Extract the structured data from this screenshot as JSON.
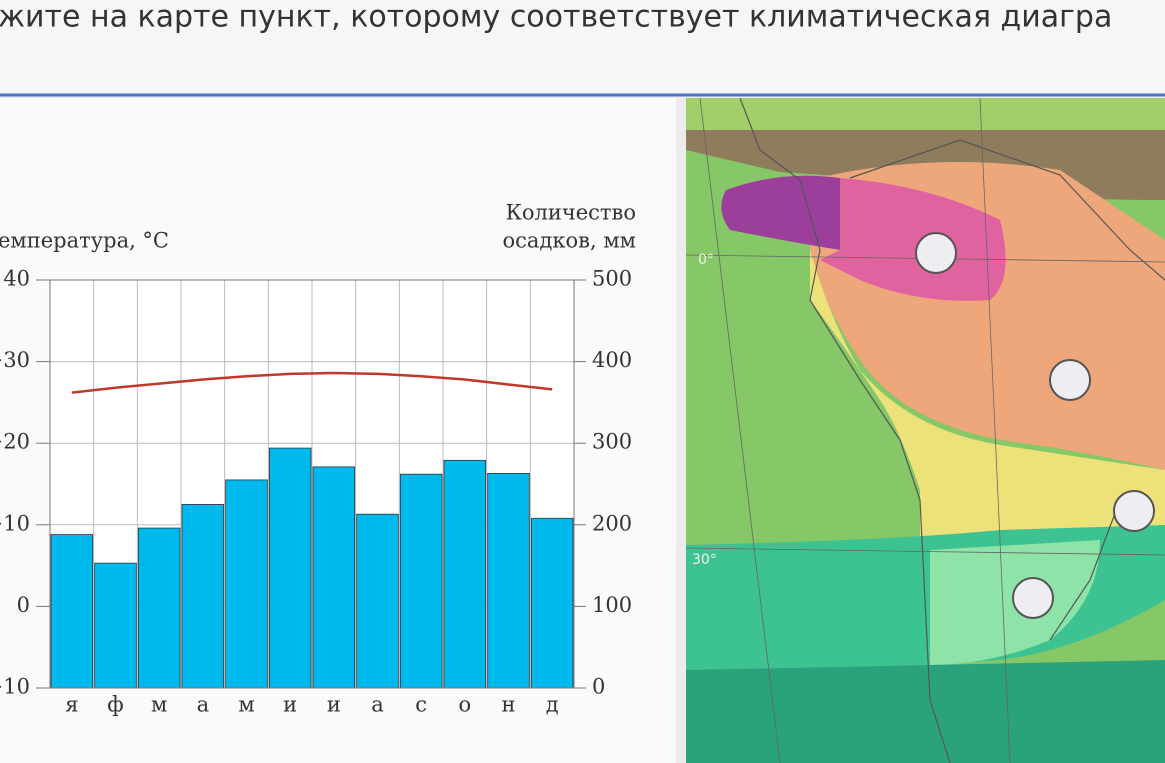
{
  "header": {
    "title": "жите на карте пункт, которому соответствует климатическая диагра"
  },
  "chart_data": {
    "type": "climate",
    "ylabel": "емпература, °C",
    "y2label": [
      "Количество",
      "осадков, мм"
    ],
    "categories": [
      "я",
      "ф",
      "м",
      "а",
      "м",
      "и",
      "и",
      "а",
      "с",
      "о",
      "н",
      "д"
    ],
    "series": [
      {
        "name": "осадки",
        "type": "bar",
        "axis": "y2",
        "color": "#00b9ec",
        "values": [
          188,
          153,
          196,
          225,
          255,
          294,
          271,
          213,
          262,
          279,
          263,
          208
        ]
      },
      {
        "name": "температура",
        "type": "line",
        "color": "#c0392b",
        "values": [
          26.2,
          26.8,
          27.3,
          27.8,
          28.2,
          28.5,
          28.6,
          28.5,
          28.2,
          27.8,
          27.2,
          26.6
        ]
      }
    ],
    "ylim": [
      -10,
      40
    ],
    "yticks": [
      40,
      {
        "value": 30,
        "label": "+30"
      },
      {
        "value": 20,
        "label": "+20"
      },
      {
        "value": 10,
        "label": "+10"
      },
      0,
      {
        "value": -10,
        "label": "−10"
      }
    ],
    "y2lim": [
      0,
      500
    ],
    "y2ticks": [
      0,
      100,
      200,
      300,
      400,
      500
    ],
    "grid": true
  },
  "map": {
    "labels": [
      "0°",
      "30°"
    ]
  }
}
